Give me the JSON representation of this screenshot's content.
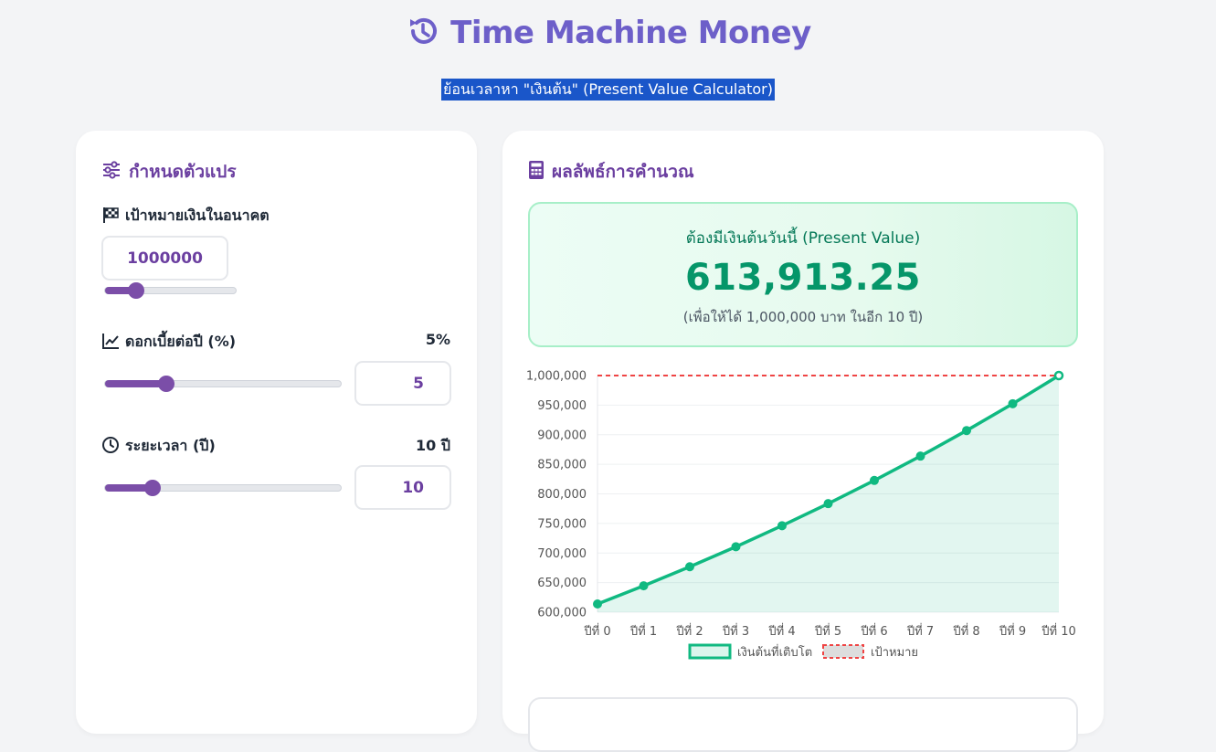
{
  "header": {
    "title": "Time Machine Money",
    "subtitle": "ย้อนเวลาหา \"เงินต้น\" (Present Value Calculator)",
    "icon": "history-icon",
    "accent_color": "#6d5fc9"
  },
  "variables_panel": {
    "title": "กำหนดตัวแปร",
    "icon": "sliders-icon",
    "future_value": {
      "label": "เป้าหมายเงินในอนาคต",
      "icon": "checkered-flag-icon",
      "input_value": "1000000",
      "slider_fraction": 0.24
    },
    "interest_rate": {
      "label": "ดอกเบี้ยต่อปี (%)",
      "icon": "chart-line-icon",
      "display_value": "5%",
      "input_value": "5",
      "slider_fraction": 0.26
    },
    "duration": {
      "label": "ระยะเวลา (ปี)",
      "icon": "clock-icon",
      "display_value": "10 ปี",
      "input_value": "10",
      "slider_fraction": 0.2
    },
    "slider_color": "#7b4ea8"
  },
  "result_panel": {
    "title": "ผลลัพธ์การคำนวณ",
    "icon": "calculator-icon",
    "present_value_label": "ต้องมีเงินต้นวันนี้ (Present Value)",
    "present_value": "613,913.25",
    "note": "(เพื่อให้ได้ 1,000,000 บาท ในอีก 10 ปี)",
    "value_color": "#059669"
  },
  "chart_data": {
    "type": "line",
    "categories": [
      "ปีที่ 0",
      "ปีที่ 1",
      "ปีที่ 2",
      "ปีที่ 3",
      "ปีที่ 4",
      "ปีที่ 5",
      "ปีที่ 6",
      "ปีที่ 7",
      "ปีที่ 8",
      "ปีที่ 9",
      "ปีที่ 10"
    ],
    "series": [
      {
        "name": "เงินต้นที่เติบโต",
        "values": [
          613913.25,
          644608.91,
          676839.36,
          710681.33,
          746215.39,
          783526.16,
          822702.47,
          863837.59,
          907029.47,
          952380.95,
          1000000
        ],
        "color": "#10b981",
        "fill": true
      },
      {
        "name": "เป้าหมาย",
        "values": [
          1000000,
          1000000,
          1000000,
          1000000,
          1000000,
          1000000,
          1000000,
          1000000,
          1000000,
          1000000,
          1000000
        ],
        "color": "#ef4444",
        "dashed": true
      }
    ],
    "y_ticks": [
      "1,000,000",
      "950,000",
      "900,000",
      "850,000",
      "800,000",
      "750,000",
      "700,000",
      "650,000",
      "600,000"
    ],
    "ylim": [
      600000,
      1000000
    ],
    "grid": true,
    "legend_position": "bottom"
  }
}
